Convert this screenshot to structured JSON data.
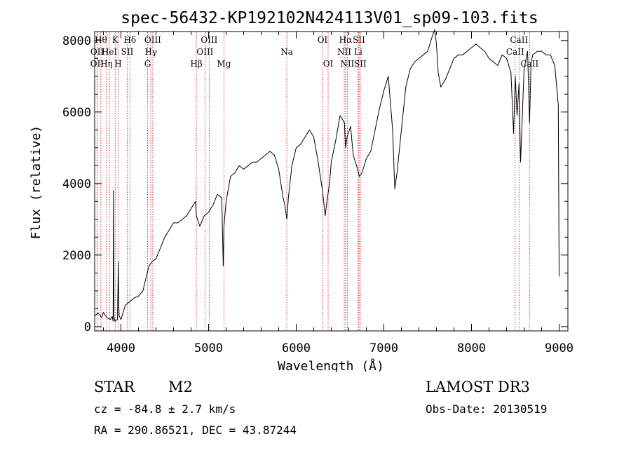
{
  "chart_data": {
    "type": "line",
    "title": "spec-56432-KP192102N424113V01_sp09-103.fits",
    "xlabel": "Wavelength (Å)",
    "ylabel": "Flux (relative)",
    "xlim": [
      3700,
      9100
    ],
    "ylim": [
      -120,
      8250
    ],
    "xticks": [
      4000,
      5000,
      6000,
      7000,
      8000,
      9000
    ],
    "yticks": [
      0,
      2000,
      4000,
      6000,
      8000
    ],
    "grid": false,
    "series": [
      {
        "name": "spectrum",
        "x": [
          3700,
          3740,
          3780,
          3800,
          3840,
          3880,
          3900,
          3910,
          3915,
          3920,
          3930,
          3960,
          3970,
          3975,
          3980,
          4000,
          4050,
          4100,
          4150,
          4200,
          4250,
          4280,
          4300,
          4320,
          4350,
          4400,
          4450,
          4500,
          4550,
          4600,
          4650,
          4700,
          4750,
          4800,
          4850,
          4861,
          4900,
          4950,
          5000,
          5050,
          5100,
          5150,
          5167,
          5175,
          5200,
          5250,
          5300,
          5350,
          5400,
          5450,
          5500,
          5550,
          5600,
          5650,
          5700,
          5750,
          5800,
          5850,
          5870,
          5893,
          5910,
          5950,
          6000,
          6050,
          6100,
          6150,
          6200,
          6250,
          6300,
          6330,
          6350,
          6380,
          6400,
          6450,
          6500,
          6550,
          6563,
          6580,
          6620,
          6650,
          6700,
          6720,
          6750,
          6800,
          6850,
          6900,
          6950,
          7000,
          7050,
          7100,
          7125,
          7150,
          7200,
          7250,
          7300,
          7350,
          7400,
          7450,
          7500,
          7550,
          7580,
          7600,
          7620,
          7650,
          7700,
          7750,
          7800,
          7850,
          7900,
          7950,
          8000,
          8050,
          8100,
          8150,
          8200,
          8250,
          8300,
          8350,
          8400,
          8450,
          8480,
          8500,
          8520,
          8542,
          8560,
          8600,
          8640,
          8662,
          8680,
          8700,
          8750,
          8800,
          8850,
          8900,
          8950,
          8990,
          9000
        ],
        "y": [
          300,
          380,
          250,
          400,
          250,
          200,
          280,
          150,
          3800,
          300,
          150,
          200,
          1800,
          600,
          300,
          200,
          600,
          700,
          800,
          850,
          1000,
          1300,
          1500,
          1700,
          1800,
          1900,
          2200,
          2500,
          2700,
          2900,
          2900,
          3000,
          3100,
          3300,
          3500,
          3100,
          2800,
          3100,
          3200,
          3400,
          3700,
          3600,
          1700,
          2800,
          3500,
          4200,
          4300,
          4500,
          4400,
          4500,
          4600,
          4600,
          4700,
          4800,
          4900,
          4800,
          4400,
          3600,
          3400,
          3000,
          3600,
          4500,
          5000,
          5100,
          5300,
          5500,
          5300,
          4600,
          3800,
          3100,
          3500,
          4000,
          4600,
          5200,
          5900,
          5700,
          5000,
          5300,
          5600,
          4800,
          4400,
          4200,
          4300,
          4700,
          4900,
          5500,
          6100,
          6600,
          7000,
          5500,
          3850,
          4300,
          5500,
          6700,
          7200,
          7400,
          7500,
          7600,
          7700,
          8100,
          8300,
          7900,
          7100,
          6700,
          6900,
          7200,
          7500,
          7600,
          7600,
          7700,
          7800,
          7900,
          7800,
          7700,
          7500,
          7400,
          7300,
          7600,
          7500,
          7100,
          5400,
          7000,
          5900,
          6800,
          4600,
          7200,
          7700,
          5700,
          7400,
          7600,
          7700,
          7700,
          7600,
          7600,
          7300,
          6200,
          1400
        ]
      }
    ],
    "line_markers": [
      {
        "wave": 3727,
        "label": "OII",
        "row": 2
      },
      {
        "wave": 3729,
        "label": "OII",
        "row": 1
      },
      {
        "wave": 3771,
        "label": "Hθ",
        "row": 0
      },
      {
        "wave": 3835,
        "label": "Hη",
        "row": 2
      },
      {
        "wave": 3869,
        "label": "HeI",
        "row": 1
      },
      {
        "wave": 3934,
        "label": "K",
        "row": 0
      },
      {
        "wave": 3968,
        "label": "H",
        "row": 2
      },
      {
        "wave": 4072,
        "label": "SII",
        "row": 1
      },
      {
        "wave": 4102,
        "label": "Hδ",
        "row": 0
      },
      {
        "wave": 4304,
        "label": "G",
        "row": 2
      },
      {
        "wave": 4341,
        "label": "Hγ",
        "row": 1
      },
      {
        "wave": 4363,
        "label": "OIII",
        "row": 0
      },
      {
        "wave": 4861,
        "label": "Hβ",
        "row": 2
      },
      {
        "wave": 4959,
        "label": "OIII",
        "row": 1
      },
      {
        "wave": 5007,
        "label": "OIII",
        "row": 0
      },
      {
        "wave": 5175,
        "label": "Mg",
        "row": 2
      },
      {
        "wave": 5893,
        "label": "Na",
        "row": 1
      },
      {
        "wave": 6300,
        "label": "OI",
        "row": 0
      },
      {
        "wave": 6364,
        "label": "OI",
        "row": 2
      },
      {
        "wave": 6548,
        "label": "NII",
        "row": 1
      },
      {
        "wave": 6563,
        "label": "Hα",
        "row": 0
      },
      {
        "wave": 6583,
        "label": "NII",
        "row": 2
      },
      {
        "wave": 6707,
        "label": "Li",
        "row": 1
      },
      {
        "wave": 6716,
        "label": "SII",
        "row": 0
      },
      {
        "wave": 6731,
        "label": "SII",
        "row": 2
      },
      {
        "wave": 8498,
        "label": "CaII",
        "row": 1
      },
      {
        "wave": 8542,
        "label": "CaII",
        "row": 0
      },
      {
        "wave": 8662,
        "label": "CaII",
        "row": 2
      }
    ]
  },
  "info": {
    "class": "STAR",
    "subclass": "M2",
    "survey": "LAMOST DR3",
    "cz": "cz = -84.8 ± 2.7 km/s",
    "obs_date": "Obs-Date: 20130519",
    "coords": "RA = 290.86521, DEC =  43.87244"
  },
  "colors": {
    "spectrum": "#000000",
    "marker": "#cc0000"
  }
}
